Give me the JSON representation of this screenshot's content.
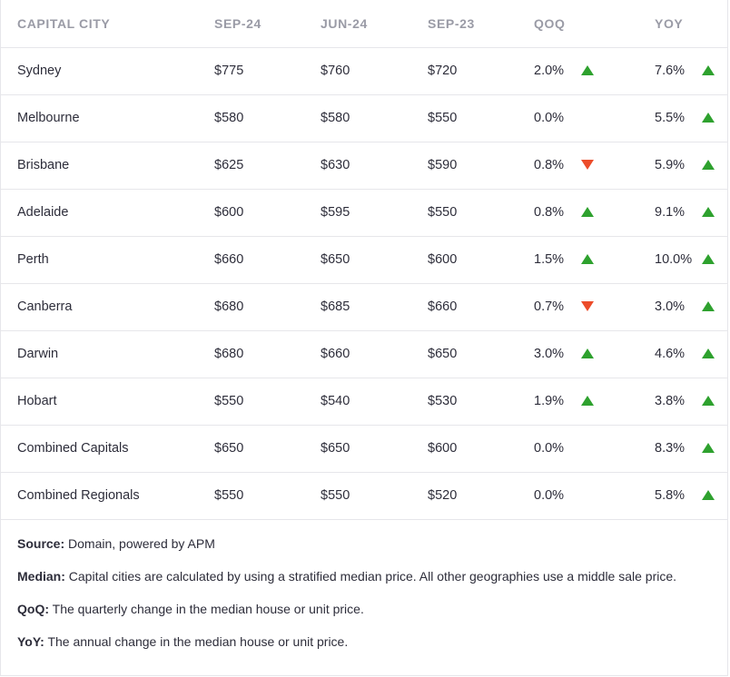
{
  "table": {
    "headers": {
      "city": "CAPITAL CITY",
      "sep24": "SEP-24",
      "jun24": "JUN-24",
      "sep23": "SEP-23",
      "qoq": "QOQ",
      "yoy": "YOY"
    },
    "rows": [
      {
        "city": "Sydney",
        "sep24": "$775",
        "jun24": "$760",
        "sep23": "$720",
        "qoq": "2.0%",
        "qoq_dir": "up",
        "yoy": "7.6%",
        "yoy_dir": "up"
      },
      {
        "city": "Melbourne",
        "sep24": "$580",
        "jun24": "$580",
        "sep23": "$550",
        "qoq": "0.0%",
        "qoq_dir": "none",
        "yoy": "5.5%",
        "yoy_dir": "up"
      },
      {
        "city": "Brisbane",
        "sep24": "$625",
        "jun24": "$630",
        "sep23": "$590",
        "qoq": "0.8%",
        "qoq_dir": "down",
        "yoy": "5.9%",
        "yoy_dir": "up"
      },
      {
        "city": "Adelaide",
        "sep24": "$600",
        "jun24": "$595",
        "sep23": "$550",
        "qoq": "0.8%",
        "qoq_dir": "up",
        "yoy": "9.1%",
        "yoy_dir": "up"
      },
      {
        "city": "Perth",
        "sep24": "$660",
        "jun24": "$650",
        "sep23": "$600",
        "qoq": "1.5%",
        "qoq_dir": "up",
        "yoy": "10.0%",
        "yoy_dir": "up"
      },
      {
        "city": "Canberra",
        "sep24": "$680",
        "jun24": "$685",
        "sep23": "$660",
        "qoq": "0.7%",
        "qoq_dir": "down",
        "yoy": "3.0%",
        "yoy_dir": "up"
      },
      {
        "city": "Darwin",
        "sep24": "$680",
        "jun24": "$660",
        "sep23": "$650",
        "qoq": "3.0%",
        "qoq_dir": "up",
        "yoy": "4.6%",
        "yoy_dir": "up"
      },
      {
        "city": "Hobart",
        "sep24": "$550",
        "jun24": "$540",
        "sep23": "$530",
        "qoq": "1.9%",
        "qoq_dir": "up",
        "yoy": "3.8%",
        "yoy_dir": "up"
      },
      {
        "city": "Combined Capitals",
        "sep24": "$650",
        "jun24": "$650",
        "sep23": "$600",
        "qoq": "0.0%",
        "qoq_dir": "none",
        "yoy": "8.3%",
        "yoy_dir": "up"
      },
      {
        "city": "Combined Regionals",
        "sep24": "$550",
        "jun24": "$550",
        "sep23": "$520",
        "qoq": "0.0%",
        "qoq_dir": "none",
        "yoy": "5.8%",
        "yoy_dir": "up"
      }
    ]
  },
  "colors": {
    "up": "#2ea12e",
    "down": "#ec4c2a",
    "header_text": "#9a9ba6",
    "body_text": "#2d2d3a",
    "divider": "#e6e6ea"
  },
  "notes": {
    "source_label": "Source:",
    "source_text": " Domain, powered by APM",
    "median_label": "Median:",
    "median_text": " Capital cities are calculated by using a stratified median price. All other geographies use a middle sale price.",
    "qoq_label": "QoQ:",
    "qoq_text": " The quarterly change in the median house or unit price.",
    "yoy_label": "YoY:",
    "yoy_text": " The annual change in the median house or unit price."
  }
}
